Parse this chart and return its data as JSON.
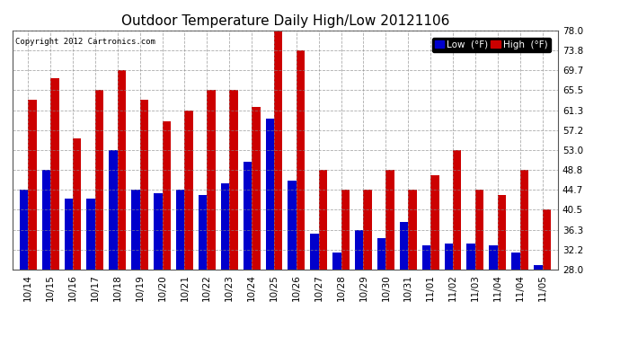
{
  "title": "Outdoor Temperature Daily High/Low 20121106",
  "copyright_text": "Copyright 2012 Cartronics.com",
  "legend_low_label": "Low  (°F)",
  "legend_high_label": "High  (°F)",
  "dates": [
    "10/14",
    "10/15",
    "10/16",
    "10/17",
    "10/18",
    "10/19",
    "10/20",
    "10/21",
    "10/22",
    "10/23",
    "10/24",
    "10/25",
    "10/26",
    "10/27",
    "10/28",
    "10/29",
    "10/30",
    "10/31",
    "11/01",
    "11/02",
    "11/03",
    "11/04",
    "11/04",
    "11/05"
  ],
  "highs": [
    63.5,
    68.0,
    55.5,
    65.5,
    69.7,
    63.5,
    59.0,
    61.3,
    65.5,
    65.5,
    62.0,
    78.0,
    73.8,
    48.8,
    44.7,
    44.7,
    48.8,
    44.7,
    47.8,
    53.0,
    44.7,
    43.5,
    48.8,
    40.5
  ],
  "lows": [
    44.7,
    48.8,
    42.8,
    42.8,
    53.0,
    44.7,
    44.0,
    44.7,
    43.5,
    46.0,
    50.5,
    59.5,
    46.5,
    35.5,
    31.5,
    36.3,
    34.5,
    38.0,
    33.0,
    33.5,
    33.5,
    33.0,
    31.5,
    29.0
  ],
  "ylim": [
    28.0,
    78.0
  ],
  "yticks": [
    28.0,
    32.2,
    36.3,
    40.5,
    44.7,
    48.8,
    53.0,
    57.2,
    61.3,
    65.5,
    69.7,
    73.8,
    78.0
  ],
  "bar_color_low": "#0000cc",
  "bar_color_high": "#cc0000",
  "background_color": "#ffffff",
  "grid_color": "#888888",
  "title_fontsize": 11,
  "tick_fontsize": 7.5,
  "bar_width": 0.38
}
